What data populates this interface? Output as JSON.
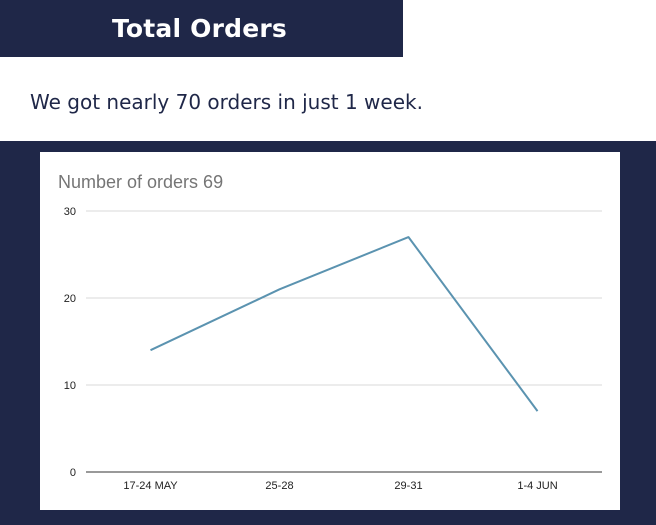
{
  "header": {
    "title": "Total Orders"
  },
  "summary": {
    "text": "We got nearly 70 orders in just 1 week."
  },
  "colors": {
    "banner": "#1f2748",
    "line": "#5b93b0",
    "gridline": "#d9d9d9",
    "axis": "#333333",
    "chart_title": "#757575"
  },
  "chart_data": {
    "type": "line",
    "title": "Number of orders 69",
    "categories": [
      "17-24 MAY",
      "25-28",
      "29-31",
      "1-4 JUN"
    ],
    "values": [
      14,
      21,
      27,
      7
    ],
    "xlabel": "",
    "ylabel": "",
    "ylim": [
      0,
      30
    ],
    "yticks": [
      0,
      10,
      20,
      30
    ],
    "ytick_labels": [
      "0",
      "10",
      "20",
      "30"
    ],
    "grid": true,
    "legend": "none"
  }
}
